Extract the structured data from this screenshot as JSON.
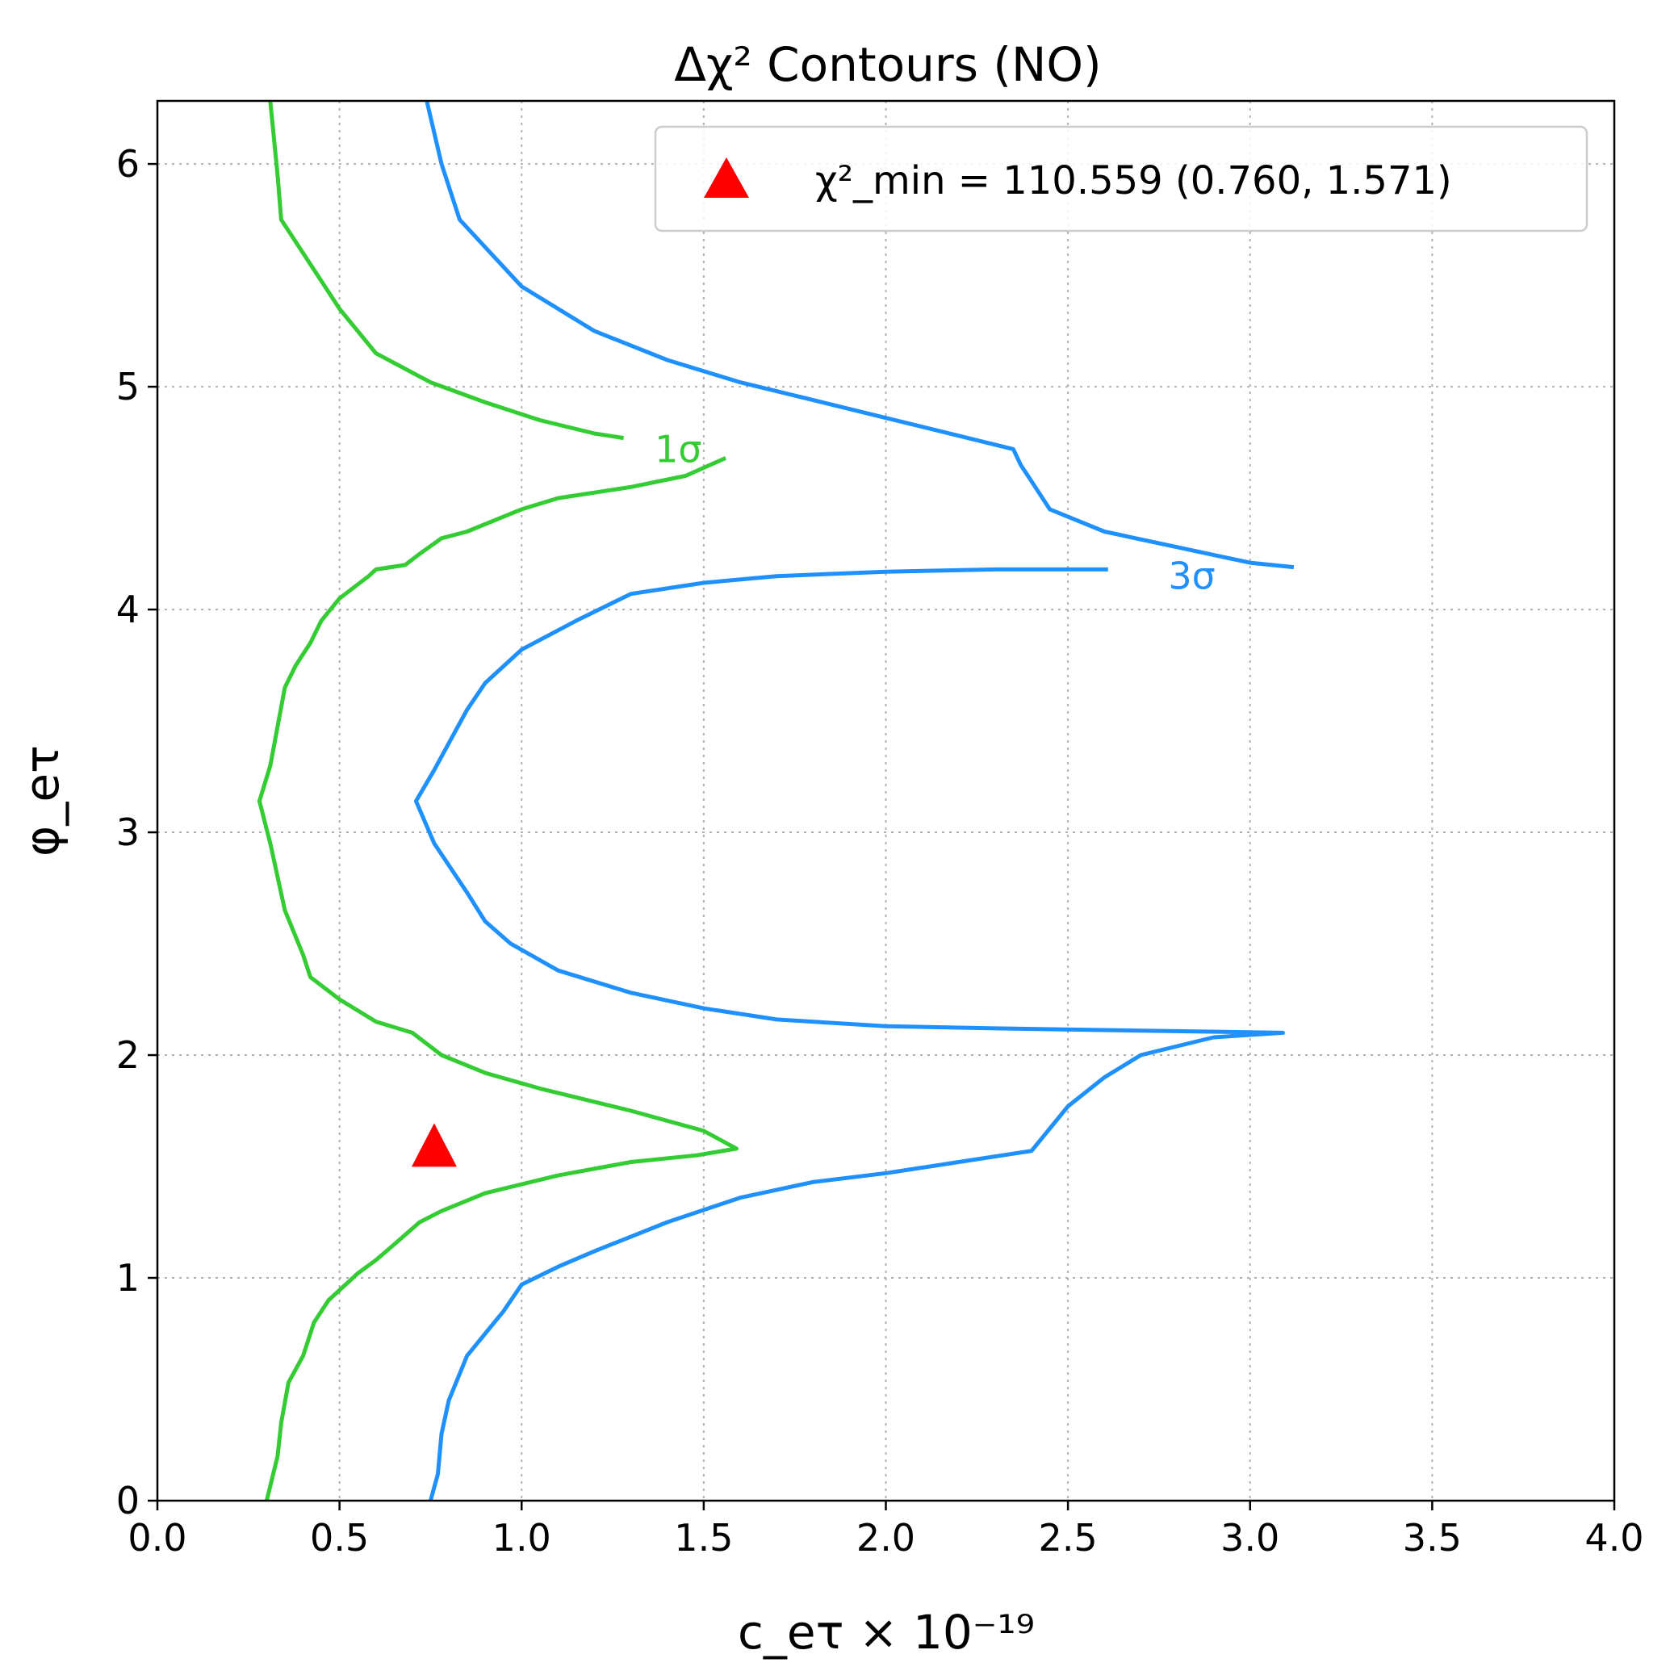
{
  "chart_data": {
    "type": "contour",
    "title": "Δχ² Contours (NO)",
    "xlabel": "c_eτ × 10⁻¹⁹",
    "ylabel": "φ_eτ",
    "xlim": [
      0.0,
      4.0
    ],
    "ylim": [
      0.0,
      6.283
    ],
    "x_ticks": [
      "0.0",
      "0.5",
      "1.0",
      "1.5",
      "2.0",
      "2.5",
      "3.0",
      "3.5",
      "4.0"
    ],
    "y_ticks": [
      "0",
      "1",
      "2",
      "3",
      "4",
      "5",
      "6"
    ],
    "grid": true,
    "legend_position": "top-right",
    "minimum": {
      "label": "χ²_min = 110.559 (0.760, 1.571)",
      "x": 0.76,
      "y": 1.571,
      "color": "#ff0000"
    },
    "series": [
      {
        "name": "1σ",
        "color": "#33cc33",
        "label_pos": [
          1.43,
          4.72
        ],
        "segments": [
          [
            [
              0.31,
              6.28
            ],
            [
              0.33,
              5.95
            ],
            [
              0.34,
              5.75
            ],
            [
              0.42,
              5.55
            ],
            [
              0.5,
              5.35
            ],
            [
              0.6,
              5.15
            ],
            [
              0.75,
              5.02
            ],
            [
              0.9,
              4.93
            ],
            [
              1.05,
              4.85
            ],
            [
              1.2,
              4.79
            ],
            [
              1.28,
              4.77
            ]
          ],
          [
            [
              1.56,
              4.68
            ],
            [
              1.45,
              4.6
            ],
            [
              1.3,
              4.55
            ],
            [
              1.1,
              4.5
            ],
            [
              1.0,
              4.45
            ],
            [
              0.85,
              4.35
            ],
            [
              0.78,
              4.32
            ],
            [
              0.72,
              4.25
            ],
            [
              0.68,
              4.2
            ],
            [
              0.6,
              4.18
            ],
            [
              0.58,
              4.15
            ],
            [
              0.5,
              4.05
            ],
            [
              0.45,
              3.95
            ],
            [
              0.42,
              3.85
            ],
            [
              0.38,
              3.75
            ],
            [
              0.35,
              3.65
            ],
            [
              0.31,
              3.3
            ],
            [
              0.28,
              3.14
            ],
            [
              0.31,
              2.95
            ],
            [
              0.35,
              2.65
            ],
            [
              0.4,
              2.45
            ],
            [
              0.42,
              2.35
            ],
            [
              0.5,
              2.25
            ],
            [
              0.6,
              2.15
            ],
            [
              0.7,
              2.1
            ],
            [
              0.78,
              2.0
            ],
            [
              0.9,
              1.92
            ],
            [
              1.05,
              1.85
            ],
            [
              1.3,
              1.75
            ],
            [
              1.5,
              1.66
            ],
            [
              1.59,
              1.58
            ],
            [
              1.48,
              1.55
            ],
            [
              1.3,
              1.52
            ],
            [
              1.1,
              1.46
            ],
            [
              0.9,
              1.38
            ],
            [
              0.78,
              1.3
            ],
            [
              0.72,
              1.25
            ],
            [
              0.65,
              1.15
            ],
            [
              0.6,
              1.08
            ],
            [
              0.55,
              1.02
            ],
            [
              0.47,
              0.9
            ],
            [
              0.43,
              0.8
            ],
            [
              0.4,
              0.65
            ],
            [
              0.36,
              0.53
            ],
            [
              0.34,
              0.35
            ],
            [
              0.33,
              0.2
            ],
            [
              0.3,
              0.0
            ]
          ]
        ]
      },
      {
        "name": "3σ",
        "color": "#1e90ff",
        "label_pos": [
          2.84,
          4.15
        ],
        "segments": [
          [
            [
              0.74,
              6.28
            ],
            [
              0.78,
              6.0
            ],
            [
              0.83,
              5.75
            ],
            [
              1.0,
              5.45
            ],
            [
              1.2,
              5.25
            ],
            [
              1.4,
              5.12
            ],
            [
              1.6,
              5.02
            ],
            [
              1.8,
              4.94
            ],
            [
              2.0,
              4.86
            ],
            [
              2.2,
              4.78
            ],
            [
              2.35,
              4.72
            ],
            [
              2.37,
              4.65
            ],
            [
              2.45,
              4.45
            ],
            [
              2.6,
              4.35
            ],
            [
              2.8,
              4.28
            ],
            [
              3.0,
              4.21
            ],
            [
              3.12,
              4.19
            ]
          ],
          [
            [
              2.61,
              4.18
            ],
            [
              2.3,
              4.18
            ],
            [
              2.0,
              4.17
            ],
            [
              1.7,
              4.15
            ],
            [
              1.5,
              4.12
            ],
            [
              1.3,
              4.07
            ],
            [
              1.15,
              3.95
            ],
            [
              1.0,
              3.82
            ],
            [
              0.9,
              3.67
            ],
            [
              0.85,
              3.55
            ],
            [
              0.8,
              3.4
            ],
            [
              0.76,
              3.28
            ],
            [
              0.71,
              3.14
            ],
            [
              0.76,
              2.95
            ],
            [
              0.85,
              2.73
            ],
            [
              0.9,
              2.6
            ],
            [
              0.97,
              2.5
            ],
            [
              1.1,
              2.38
            ],
            [
              1.3,
              2.28
            ],
            [
              1.5,
              2.21
            ],
            [
              1.7,
              2.16
            ],
            [
              2.0,
              2.13
            ],
            [
              2.3,
              2.12
            ],
            [
              2.7,
              2.11
            ],
            [
              3.09,
              2.1
            ],
            [
              2.9,
              2.08
            ],
            [
              2.7,
              2.0
            ],
            [
              2.6,
              1.9
            ],
            [
              2.5,
              1.77
            ],
            [
              2.4,
              1.57
            ],
            [
              2.2,
              1.52
            ],
            [
              2.0,
              1.47
            ],
            [
              1.8,
              1.43
            ],
            [
              1.6,
              1.36
            ],
            [
              1.4,
              1.25
            ],
            [
              1.2,
              1.12
            ],
            [
              1.1,
              1.05
            ],
            [
              1.0,
              0.97
            ],
            [
              0.95,
              0.85
            ],
            [
              0.9,
              0.75
            ],
            [
              0.85,
              0.65
            ],
            [
              0.8,
              0.45
            ],
            [
              0.78,
              0.3
            ],
            [
              0.77,
              0.12
            ],
            [
              0.75,
              0.0
            ]
          ]
        ]
      }
    ]
  }
}
